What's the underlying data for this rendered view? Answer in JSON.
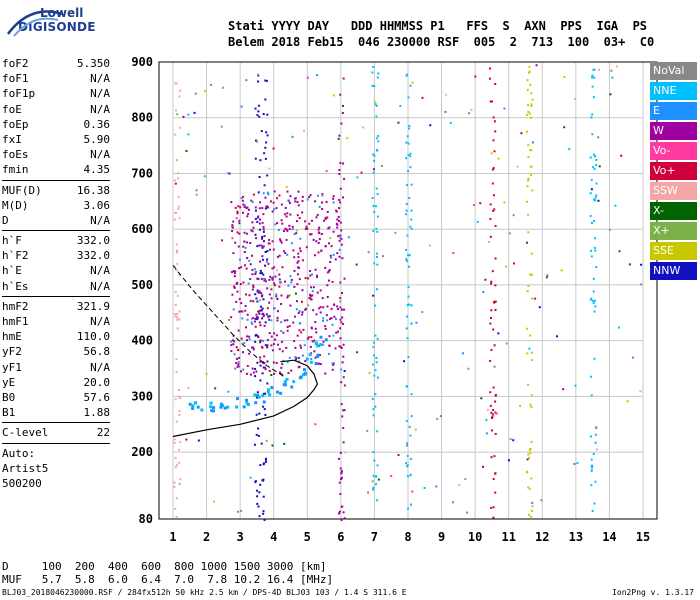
{
  "logo": {
    "line1": "Lowell",
    "line2": "DIGISONDE"
  },
  "header": {
    "line1": "Stati YYYY DAY   DDD HHMMSS P1   FFS  S  AXN  PPS  IGA  PS",
    "line2": "Belem 2018 Feb15  046 230000 RSF  005  2  713  100  03+  C0"
  },
  "params": [
    {
      "name": "foF2",
      "value": "5.350"
    },
    {
      "name": "foF1",
      "value": "N/A"
    },
    {
      "name": "foF1p",
      "value": "N/A"
    },
    {
      "name": "foE",
      "value": "N/A"
    },
    {
      "name": "foEp",
      "value": "0.36"
    },
    {
      "name": "fxI",
      "value": "5.90"
    },
    {
      "name": "foEs",
      "value": "N/A"
    },
    {
      "name": "fmin",
      "value": "4.35"
    },
    {
      "sep": true
    },
    {
      "name": "MUF(D)",
      "value": "16.38"
    },
    {
      "name": "M(D)",
      "value": "3.06"
    },
    {
      "name": "D",
      "value": "N/A"
    },
    {
      "sep": true
    },
    {
      "name": "h`F",
      "value": "332.0"
    },
    {
      "name": "h`F2",
      "value": "332.0"
    },
    {
      "name": "h`E",
      "value": "N/A"
    },
    {
      "name": "h`Es",
      "value": "N/A"
    },
    {
      "sep": true
    },
    {
      "name": "hmF2",
      "value": "321.9"
    },
    {
      "name": "hmF1",
      "value": "N/A"
    },
    {
      "name": "hmE",
      "value": "110.0"
    },
    {
      "name": "yF2",
      "value": "56.8"
    },
    {
      "name": "yF1",
      "value": "N/A"
    },
    {
      "name": "yE",
      "value": "20.0"
    },
    {
      "name": "B0",
      "value": "57.6"
    },
    {
      "name": "B1",
      "value": "1.88"
    },
    {
      "sep": true
    },
    {
      "name": "C-level",
      "value": "22"
    },
    {
      "sep": true
    },
    {
      "name": "Auto:",
      "value": ""
    },
    {
      "name": "Artist5",
      "value": ""
    },
    {
      "name": "500200",
      "value": ""
    }
  ],
  "legend": [
    {
      "label": "NoVal",
      "color": "#888888"
    },
    {
      "label": "NNE",
      "color": "#00bfff"
    },
    {
      "label": "E",
      "color": "#1e90ff"
    },
    {
      "label": "W",
      "color": "#a000a0"
    },
    {
      "label": "Vo-",
      "color": "#ff3aa0"
    },
    {
      "label": "Vo+",
      "color": "#d0003a"
    },
    {
      "label": "SSW",
      "color": "#f4a6a6"
    },
    {
      "label": "X-",
      "color": "#006400"
    },
    {
      "label": "X+",
      "color": "#7cb04a"
    },
    {
      "label": "SSE",
      "color": "#c8c800"
    },
    {
      "label": "NNW",
      "color": "#1010c0"
    }
  ],
  "freq_table": {
    "row1": "D     100  200  400  600  800 1000 1500 3000 [km]",
    "row2": "MUF   5.7  5.8  6.0  6.4  7.0  7.8 10.2 16.4 [MHz]"
  },
  "footer": {
    "left": "BLJ03_2018046230000.RSF / 284fx512h 50 kHz 2.5 km / DPS-4D BLJ03 103 / 1.4 S 311.6 E",
    "right": "Ion2Png v. 1.3.17"
  },
  "chart_data": {
    "type": "scatter",
    "title": "",
    "xlabel": "",
    "ylabel": "",
    "xlim": [
      1,
      15
    ],
    "ylim": [
      80,
      900
    ],
    "x_ticks": [
      1,
      2,
      3,
      4,
      5,
      6,
      7,
      8,
      9,
      10,
      11,
      12,
      13,
      14,
      15
    ],
    "y_ticks": [
      80,
      200,
      300,
      400,
      500,
      600,
      700,
      800,
      900
    ],
    "grid": true,
    "echo_trace": [
      {
        "x": 1.6,
        "y": 288
      },
      {
        "x": 2.0,
        "y": 285
      },
      {
        "x": 2.5,
        "y": 286
      },
      {
        "x": 3.0,
        "y": 290
      },
      {
        "x": 3.5,
        "y": 300
      },
      {
        "x": 4.0,
        "y": 310
      },
      {
        "x": 4.4,
        "y": 325
      },
      {
        "x": 4.8,
        "y": 345
      },
      {
        "x": 5.1,
        "y": 370
      },
      {
        "x": 5.35,
        "y": 400
      }
    ],
    "profile_curve": [
      {
        "x": 1.0,
        "y": 228
      },
      {
        "x": 2.0,
        "y": 240
      },
      {
        "x": 3.0,
        "y": 250
      },
      {
        "x": 4.0,
        "y": 265
      },
      {
        "x": 4.6,
        "y": 282
      },
      {
        "x": 5.0,
        "y": 298
      },
      {
        "x": 5.2,
        "y": 312
      },
      {
        "x": 5.3,
        "y": 322
      },
      {
        "x": 5.2,
        "y": 340
      },
      {
        "x": 5.0,
        "y": 355
      },
      {
        "x": 4.6,
        "y": 365
      },
      {
        "x": 4.2,
        "y": 362
      }
    ],
    "dashed_curve": [
      {
        "x": 1.0,
        "y": 535
      },
      {
        "x": 1.6,
        "y": 490
      },
      {
        "x": 2.2,
        "y": 450
      },
      {
        "x": 2.8,
        "y": 410
      },
      {
        "x": 3.3,
        "y": 380
      },
      {
        "x": 3.8,
        "y": 355
      },
      {
        "x": 4.3,
        "y": 336
      }
    ]
  }
}
